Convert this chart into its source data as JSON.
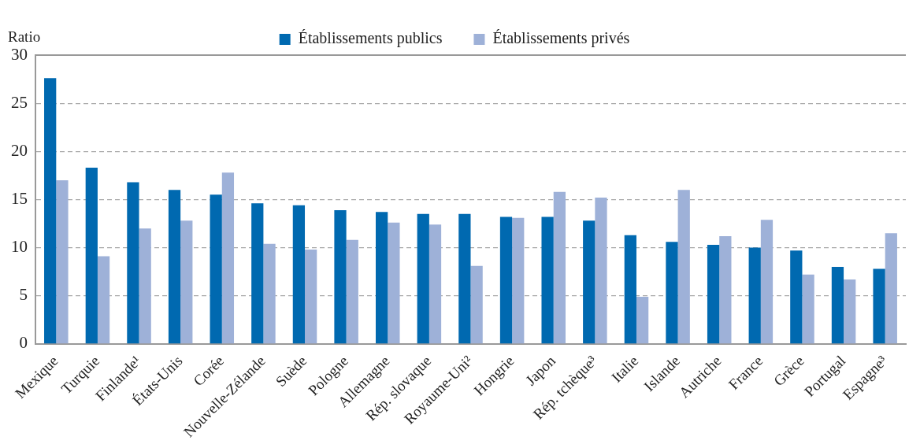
{
  "chart_data": {
    "type": "bar",
    "ylabel": "Ratio",
    "categories": [
      "Mexique",
      "Turquie",
      "Finlande¹",
      "États-Unis",
      "Corée",
      "Nouvelle-Zélande",
      "Suède",
      "Pologne",
      "Allemagne",
      "Rép. slovaque",
      "Royaume-Uni²",
      "Hongrie",
      "Japon",
      "Rép. tchèque³",
      "Italie",
      "Islande",
      "Autriche",
      "France",
      "Grèce",
      "Portugal",
      "Espagne³"
    ],
    "series": [
      {
        "name": "Établissements publics",
        "color": "#0069b0",
        "values": [
          27.6,
          18.3,
          16.8,
          16.0,
          15.5,
          14.6,
          14.4,
          13.9,
          13.7,
          13.5,
          13.5,
          13.2,
          13.2,
          12.8,
          11.3,
          10.6,
          10.3,
          10.0,
          9.7,
          8.0,
          7.8
        ]
      },
      {
        "name": "Établissements privés",
        "color": "#9eb1d8",
        "values": [
          17.0,
          9.1,
          12.0,
          12.8,
          17.8,
          10.4,
          9.8,
          10.8,
          12.6,
          12.4,
          8.1,
          13.1,
          15.8,
          15.2,
          4.9,
          16.0,
          11.2,
          12.9,
          7.2,
          6.7,
          11.5
        ]
      }
    ],
    "ylim": [
      0,
      30
    ],
    "yticks": [
      0,
      5,
      10,
      15,
      20,
      25,
      30
    ],
    "grid": "y",
    "legend": "top"
  }
}
